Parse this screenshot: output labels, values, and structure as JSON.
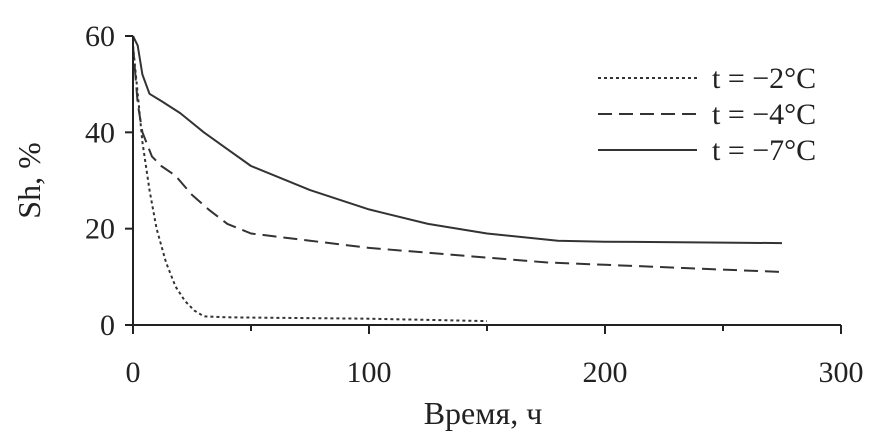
{
  "chart_data": {
    "type": "line",
    "title": "",
    "xlabel": "Время, ч",
    "ylabel": "Sh, %",
    "xlim": [
      0,
      300
    ],
    "ylim": [
      0,
      60
    ],
    "xticks": [
      "0",
      "100",
      "200",
      "300"
    ],
    "yticks": [
      "0",
      "20",
      "40",
      "60"
    ],
    "grid": false,
    "legend_position": "top-right",
    "series": [
      {
        "name": "t = −2°C",
        "style": "dotted",
        "color": "#333333",
        "points": [
          [
            0,
            58
          ],
          [
            2,
            48
          ],
          [
            4,
            38
          ],
          [
            7,
            28
          ],
          [
            10,
            20
          ],
          [
            14,
            13
          ],
          [
            18,
            8
          ],
          [
            22,
            5
          ],
          [
            26,
            3
          ],
          [
            30,
            1.8
          ],
          [
            40,
            1.6
          ],
          [
            60,
            1.5
          ],
          [
            100,
            1.3
          ],
          [
            150,
            0.8
          ]
        ]
      },
      {
        "name": "t = −4°C",
        "style": "dashed",
        "color": "#333333",
        "points": [
          [
            0,
            58
          ],
          [
            2,
            46
          ],
          [
            4,
            40
          ],
          [
            8,
            35
          ],
          [
            12,
            33
          ],
          [
            18,
            31
          ],
          [
            25,
            27
          ],
          [
            32,
            24
          ],
          [
            40,
            21
          ],
          [
            50,
            19
          ],
          [
            75,
            17.5
          ],
          [
            100,
            16
          ],
          [
            150,
            14
          ],
          [
            175,
            13
          ],
          [
            200,
            12.5
          ],
          [
            275,
            11
          ]
        ]
      },
      {
        "name": "t = −7°C",
        "style": "solid",
        "color": "#333333",
        "points": [
          [
            0,
            60
          ],
          [
            2,
            58
          ],
          [
            4,
            52
          ],
          [
            7,
            48
          ],
          [
            12,
            46.5
          ],
          [
            20,
            44
          ],
          [
            30,
            40
          ],
          [
            40,
            36.5
          ],
          [
            50,
            33
          ],
          [
            75,
            28
          ],
          [
            100,
            24
          ],
          [
            125,
            21
          ],
          [
            150,
            19
          ],
          [
            180,
            17.5
          ],
          [
            200,
            17.3
          ],
          [
            250,
            17.1
          ],
          [
            275,
            17
          ]
        ]
      }
    ]
  }
}
